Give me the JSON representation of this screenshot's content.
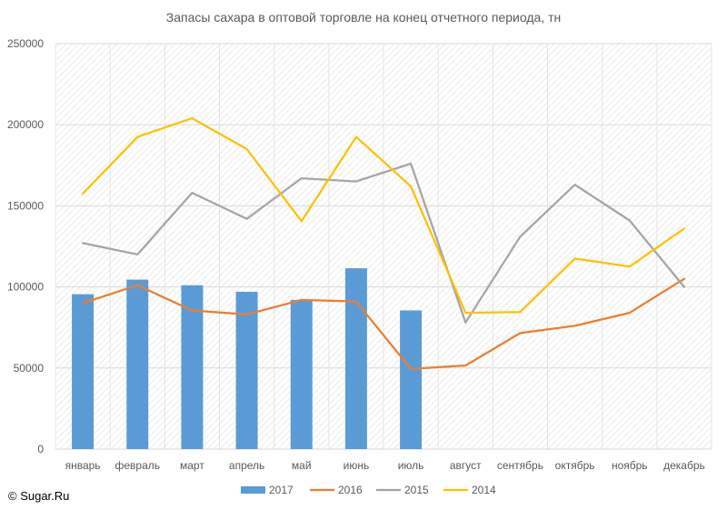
{
  "chart_data": {
    "type": "bar",
    "title": "Запасы сахара в оптовой торговле на конец отчетного периода, тн",
    "categories": [
      "январь",
      "февраль",
      "март",
      "апрель",
      "май",
      "июнь",
      "июль",
      "август",
      "сентябрь",
      "октябрь",
      "ноябрь",
      "декабрь"
    ],
    "ylim": [
      0,
      250000
    ],
    "yticks": [
      0,
      50000,
      100000,
      150000,
      200000,
      250000
    ],
    "grid": true,
    "legend_position": "bottom",
    "series": [
      {
        "name": "2017",
        "type": "bar",
        "color": "#5b9bd5",
        "values": [
          95500,
          104500,
          101000,
          97000,
          92000,
          111500,
          85500,
          null,
          null,
          null,
          null,
          null
        ]
      },
      {
        "name": "2016",
        "type": "line",
        "color": "#ed7d31",
        "values": [
          90000,
          101000,
          85500,
          83000,
          92000,
          91000,
          49500,
          51500,
          71500,
          76000,
          84000,
          105000
        ]
      },
      {
        "name": "2015",
        "type": "line",
        "color": "#a5a5a5",
        "values": [
          127000,
          120000,
          158000,
          142000,
          167000,
          165000,
          176000,
          78000,
          131000,
          163000,
          141000,
          100000
        ]
      },
      {
        "name": "2014",
        "type": "line",
        "color": "#ffc000",
        "values": [
          157500,
          192500,
          204000,
          185000,
          140500,
          192500,
          162000,
          84000,
          84500,
          117500,
          112500,
          136000
        ]
      }
    ]
  },
  "credit": "© Sugar.Ru"
}
